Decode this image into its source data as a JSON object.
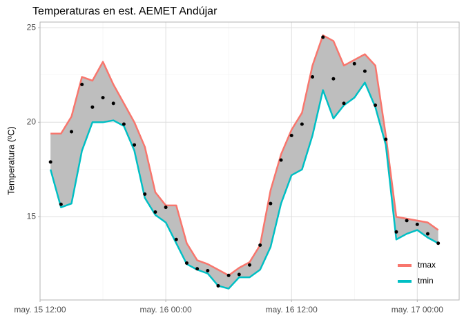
{
  "chart_data": {
    "type": "ribbon",
    "title": "Temperaturas en est. AEMET Andújar",
    "y_label": "Temperatura (ºC)",
    "x": [
      13,
      14,
      15,
      16,
      17,
      18,
      19,
      20,
      21,
      22,
      23,
      24,
      25,
      26,
      27,
      28,
      29,
      30,
      31,
      32,
      33,
      34,
      35,
      36,
      37,
      38,
      39,
      40,
      41,
      42,
      43,
      44,
      45,
      46,
      47,
      48,
      49,
      50
    ],
    "xlim": [
      12,
      52
    ],
    "xticks": [
      {
        "value": 12,
        "label": "may. 15 12:00"
      },
      {
        "value": 24,
        "label": "may. 16 00:00"
      },
      {
        "value": 36,
        "label": "may. 16 12:00"
      },
      {
        "value": 48,
        "label": "may. 17 00:00"
      }
    ],
    "ylim": [
      10.6,
      25.3
    ],
    "yticks": [
      15,
      20,
      25
    ],
    "grid": true,
    "legend_position": "bottom-right",
    "ribbon_color": "#bebebe",
    "series": [
      {
        "name": "tmax",
        "color": "#F8766D",
        "values": [
          19.4,
          19.4,
          20.3,
          22.4,
          22.2,
          23.2,
          22.0,
          21.0,
          20.0,
          18.7,
          16.3,
          15.6,
          15.6,
          13.6,
          12.7,
          12.5,
          12.2,
          11.9,
          12.3,
          12.6,
          13.5,
          16.4,
          18.3,
          19.6,
          20.5,
          23.0,
          24.6,
          24.3,
          23.0,
          23.3,
          23.6,
          23.0,
          19.3,
          15.0,
          14.9,
          14.8,
          14.7,
          14.3
        ]
      },
      {
        "name": "tmin",
        "color": "#00BFC4",
        "values": [
          17.5,
          15.5,
          15.7,
          18.5,
          20.0,
          20.0,
          20.1,
          19.8,
          18.5,
          16.0,
          15.1,
          14.7,
          13.6,
          12.5,
          12.2,
          12.0,
          11.35,
          11.2,
          11.8,
          11.8,
          12.2,
          13.4,
          15.7,
          17.2,
          17.5,
          19.3,
          21.7,
          20.2,
          20.9,
          21.3,
          22.1,
          20.8,
          18.8,
          13.8,
          14.1,
          14.3,
          13.9,
          13.6
        ]
      }
    ],
    "points": {
      "color": "#000000",
      "values": [
        17.9,
        15.66,
        19.5,
        22.0,
        20.8,
        21.3,
        21.0,
        19.9,
        18.8,
        16.2,
        15.25,
        15.5,
        13.8,
        12.55,
        12.25,
        12.15,
        11.35,
        11.9,
        11.95,
        12.45,
        13.5,
        15.7,
        18.0,
        19.3,
        19.9,
        22.4,
        24.5,
        22.3,
        21.0,
        23.1,
        22.7,
        20.9,
        19.1,
        14.2,
        14.8,
        14.6,
        14.1,
        13.6
      ]
    }
  }
}
